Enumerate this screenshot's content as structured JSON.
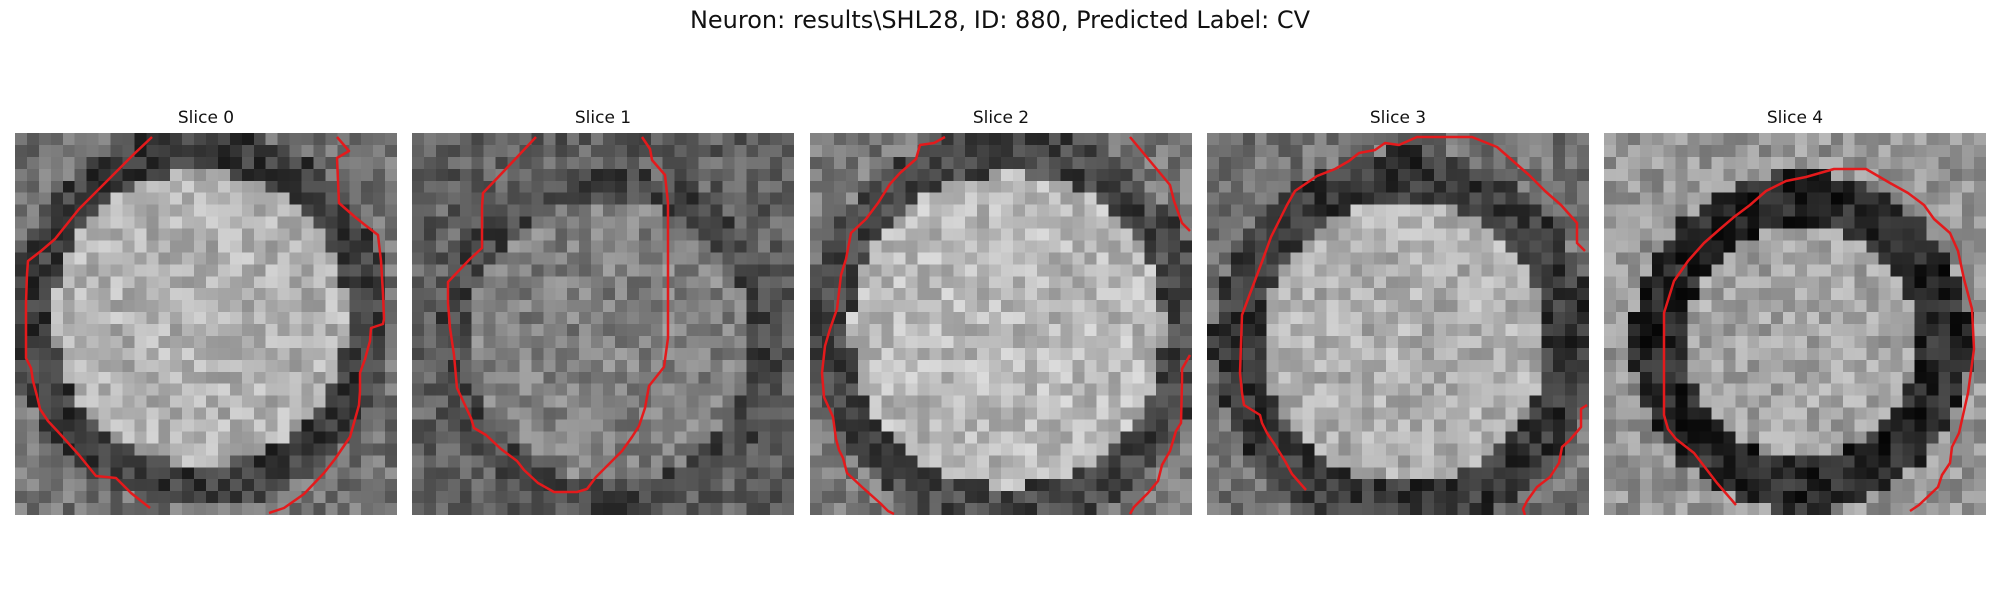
{
  "figure": {
    "title": "Neuron: results\\SHL28, ID: 880, Predicted Label: CV",
    "contour_color": "#e41a1c"
  },
  "panels": [
    {
      "title": "Slice 0"
    },
    {
      "title": "Slice 1"
    },
    {
      "title": "Slice 2"
    },
    {
      "title": "Slice 3"
    },
    {
      "title": "Slice 4"
    }
  ]
}
